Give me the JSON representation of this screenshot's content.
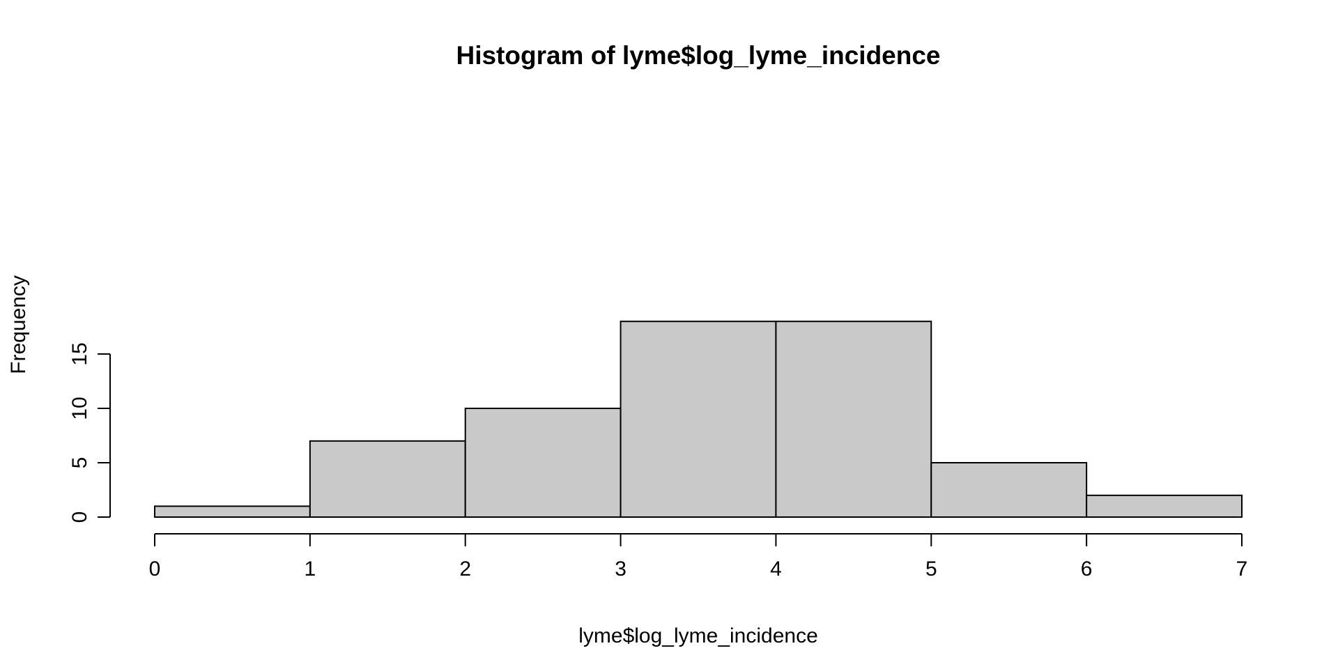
{
  "chart_data": {
    "type": "bar",
    "title": "Histogram of lyme$log_lyme_incidence",
    "xlabel": "lyme$log_lyme_incidence",
    "ylabel": "Frequency",
    "bins": [
      {
        "start": 0,
        "end": 1,
        "count": 1
      },
      {
        "start": 1,
        "end": 2,
        "count": 7
      },
      {
        "start": 2,
        "end": 3,
        "count": 10
      },
      {
        "start": 3,
        "end": 4,
        "count": 18
      },
      {
        "start": 4,
        "end": 5,
        "count": 18
      },
      {
        "start": 5,
        "end": 6,
        "count": 5
      },
      {
        "start": 6,
        "end": 7,
        "count": 2
      }
    ],
    "xlim": [
      0,
      7
    ],
    "ylim": [
      0,
      18
    ],
    "x_ticks": [
      "0",
      "1",
      "2",
      "3",
      "4",
      "5",
      "6",
      "7"
    ],
    "y_ticks": [
      "0",
      "5",
      "10",
      "15"
    ],
    "bar_color": "#c9c9c9",
    "grid": false,
    "legend": "none"
  }
}
